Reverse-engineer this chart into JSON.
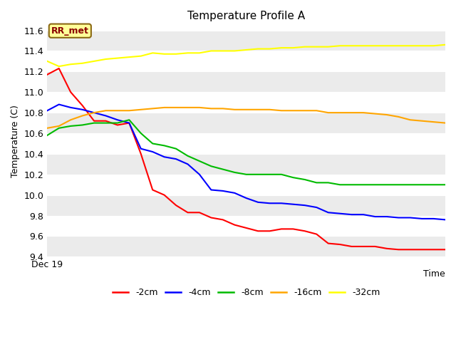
{
  "title": "Temperature Profile A",
  "xlabel": "Time",
  "ylabel": "Temperature (C)",
  "xlim": [
    0,
    34
  ],
  "ylim": [
    9.4,
    11.65
  ],
  "annotation_text": "RR_met",
  "annotation_color": "#8B0000",
  "annotation_bg": "#FFFF99",
  "annotation_border": "#8B6914",
  "fig_bg": "#FFFFFF",
  "plot_bg_light": "#F0F0F0",
  "plot_bg_dark": "#DCDCDC",
  "series": {
    "-2cm": {
      "color": "#FF0000",
      "values": [
        11.17,
        11.23,
        11.0,
        10.87,
        10.72,
        10.72,
        10.68,
        10.7,
        10.4,
        10.05,
        10.0,
        9.9,
        9.83,
        9.83,
        9.78,
        9.76,
        9.71,
        9.68,
        9.65,
        9.65,
        9.67,
        9.67,
        9.65,
        9.62,
        9.53,
        9.52,
        9.5,
        9.5,
        9.5,
        9.48,
        9.47,
        9.47,
        9.47,
        9.47,
        9.47
      ]
    },
    "-4cm": {
      "color": "#0000FF",
      "values": [
        10.82,
        10.88,
        10.85,
        10.83,
        10.8,
        10.77,
        10.73,
        10.7,
        10.45,
        10.42,
        10.37,
        10.35,
        10.3,
        10.2,
        10.05,
        10.04,
        10.02,
        9.97,
        9.93,
        9.92,
        9.92,
        9.91,
        9.9,
        9.88,
        9.83,
        9.82,
        9.81,
        9.81,
        9.79,
        9.79,
        9.78,
        9.78,
        9.77,
        9.77,
        9.76
      ]
    },
    "-8cm": {
      "color": "#00BB00",
      "values": [
        10.58,
        10.65,
        10.67,
        10.68,
        10.7,
        10.7,
        10.7,
        10.73,
        10.6,
        10.5,
        10.48,
        10.45,
        10.38,
        10.33,
        10.28,
        10.25,
        10.22,
        10.2,
        10.2,
        10.2,
        10.2,
        10.17,
        10.15,
        10.12,
        10.12,
        10.1,
        10.1,
        10.1,
        10.1,
        10.1,
        10.1,
        10.1,
        10.1,
        10.1,
        10.1
      ]
    },
    "-16cm": {
      "color": "#FFA500",
      "values": [
        10.65,
        10.67,
        10.73,
        10.77,
        10.8,
        10.82,
        10.82,
        10.82,
        10.83,
        10.84,
        10.85,
        10.85,
        10.85,
        10.85,
        10.84,
        10.84,
        10.83,
        10.83,
        10.83,
        10.83,
        10.82,
        10.82,
        10.82,
        10.82,
        10.8,
        10.8,
        10.8,
        10.8,
        10.79,
        10.78,
        10.76,
        10.73,
        10.72,
        10.71,
        10.7
      ]
    },
    "-32cm": {
      "color": "#FFFF00",
      "values": [
        11.3,
        11.25,
        11.27,
        11.28,
        11.3,
        11.32,
        11.33,
        11.34,
        11.35,
        11.38,
        11.37,
        11.37,
        11.38,
        11.38,
        11.4,
        11.4,
        11.4,
        11.41,
        11.42,
        11.42,
        11.43,
        11.43,
        11.44,
        11.44,
        11.44,
        11.45,
        11.45,
        11.45,
        11.45,
        11.45,
        11.45,
        11.45,
        11.45,
        11.45,
        11.46
      ]
    }
  },
  "yticks": [
    9.4,
    9.6,
    9.8,
    10.0,
    10.2,
    10.4,
    10.6,
    10.8,
    11.0,
    11.2,
    11.4,
    11.6
  ],
  "stripe_colors": [
    "#EBEBEB",
    "#FFFFFF"
  ]
}
